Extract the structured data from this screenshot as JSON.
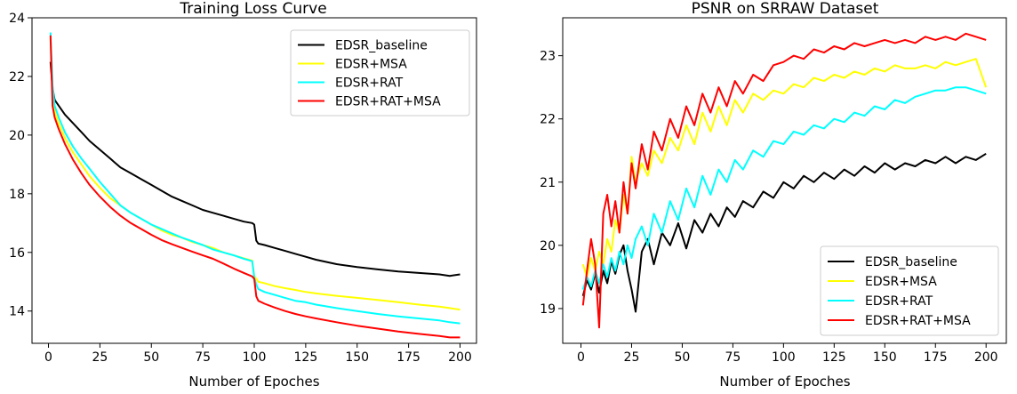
{
  "chart_data": [
    {
      "type": "line",
      "title": "Training Loss Curve",
      "xlabel": "Number of Epoches",
      "ylabel": "",
      "xlim": [
        -8,
        208
      ],
      "ylim": [
        12.9,
        24.0
      ],
      "xticks": [
        0,
        25,
        50,
        75,
        100,
        125,
        150,
        175,
        200
      ],
      "yticks": [
        14,
        16,
        18,
        20,
        22,
        24
      ],
      "legend_position": "top-right",
      "grid": false,
      "series": [
        {
          "name": "EDSR_baseline",
          "color": "#000000",
          "x": [
            1,
            2,
            3,
            5,
            8,
            12,
            16,
            20,
            25,
            30,
            35,
            40,
            45,
            50,
            55,
            60,
            65,
            70,
            75,
            80,
            85,
            90,
            95,
            99,
            100,
            101,
            102,
            105,
            110,
            115,
            120,
            125,
            130,
            140,
            150,
            160,
            170,
            180,
            190,
            195,
            200
          ],
          "y": [
            22.5,
            21.6,
            21.2,
            21.0,
            20.7,
            20.4,
            20.1,
            19.8,
            19.5,
            19.2,
            18.9,
            18.7,
            18.5,
            18.3,
            18.1,
            17.9,
            17.75,
            17.6,
            17.45,
            17.35,
            17.25,
            17.15,
            17.05,
            17.0,
            16.95,
            16.4,
            16.3,
            16.25,
            16.15,
            16.05,
            15.95,
            15.85,
            15.75,
            15.6,
            15.5,
            15.42,
            15.35,
            15.3,
            15.25,
            15.2,
            15.25
          ]
        },
        {
          "name": "EDSR+MSA",
          "color": "#ffff00",
          "x": [
            1,
            2,
            3,
            5,
            8,
            12,
            16,
            20,
            25,
            30,
            35,
            40,
            45,
            50,
            55,
            60,
            65,
            70,
            75,
            80,
            85,
            90,
            95,
            99,
            100,
            101,
            102,
            105,
            110,
            115,
            120,
            125,
            130,
            140,
            150,
            160,
            170,
            180,
            190,
            195,
            200
          ],
          "y": [
            23.3,
            21.5,
            20.8,
            20.4,
            19.9,
            19.4,
            19.0,
            18.6,
            18.2,
            17.85,
            17.6,
            17.35,
            17.15,
            16.95,
            16.75,
            16.6,
            16.5,
            16.35,
            16.25,
            16.15,
            16.0,
            15.9,
            15.8,
            15.72,
            15.2,
            15.1,
            15.0,
            14.95,
            14.85,
            14.78,
            14.72,
            14.65,
            14.6,
            14.52,
            14.45,
            14.38,
            14.3,
            14.22,
            14.15,
            14.1,
            14.05
          ]
        },
        {
          "name": "EDSR+RAT",
          "color": "#00ffff",
          "x": [
            1,
            2,
            3,
            5,
            8,
            12,
            16,
            20,
            25,
            30,
            35,
            40,
            45,
            50,
            55,
            60,
            65,
            70,
            75,
            80,
            85,
            90,
            95,
            99,
            100,
            101,
            102,
            105,
            110,
            115,
            120,
            125,
            130,
            140,
            150,
            160,
            170,
            180,
            190,
            195,
            200
          ],
          "y": [
            23.5,
            21.7,
            21.0,
            20.6,
            20.1,
            19.6,
            19.2,
            18.85,
            18.4,
            18.0,
            17.6,
            17.35,
            17.15,
            16.95,
            16.8,
            16.65,
            16.5,
            16.38,
            16.25,
            16.1,
            16.0,
            15.9,
            15.78,
            15.7,
            15.15,
            14.9,
            14.75,
            14.65,
            14.55,
            14.45,
            14.35,
            14.3,
            14.22,
            14.1,
            14.0,
            13.9,
            13.82,
            13.75,
            13.68,
            13.62,
            13.58
          ]
        },
        {
          "name": "EDSR+RAT+MSA",
          "color": "#ff0000",
          "x": [
            1,
            2,
            3,
            5,
            8,
            12,
            16,
            20,
            25,
            30,
            35,
            40,
            45,
            50,
            55,
            60,
            65,
            70,
            75,
            80,
            85,
            90,
            95,
            99,
            100,
            101,
            102,
            105,
            110,
            115,
            120,
            125,
            130,
            140,
            150,
            160,
            170,
            180,
            190,
            195,
            200
          ],
          "y": [
            23.4,
            21.0,
            20.6,
            20.2,
            19.7,
            19.15,
            18.7,
            18.3,
            17.9,
            17.55,
            17.25,
            17.0,
            16.8,
            16.6,
            16.42,
            16.28,
            16.15,
            16.02,
            15.9,
            15.78,
            15.62,
            15.45,
            15.3,
            15.18,
            15.1,
            14.5,
            14.35,
            14.25,
            14.12,
            14.0,
            13.9,
            13.82,
            13.75,
            13.62,
            13.5,
            13.4,
            13.3,
            13.22,
            13.15,
            13.1,
            13.1
          ]
        }
      ]
    },
    {
      "type": "line",
      "title": "PSNR on SRRAW Dataset",
      "xlabel": "Number of Epoches",
      "ylabel": "",
      "xlim": [
        -9,
        210
      ],
      "ylim": [
        18.45,
        23.6
      ],
      "xticks": [
        0,
        25,
        50,
        75,
        100,
        125,
        150,
        175,
        200
      ],
      "yticks": [
        19,
        20,
        21,
        22,
        23
      ],
      "legend_position": "bottom-right",
      "grid": false,
      "series": [
        {
          "name": "EDSR_baseline",
          "color": "#000000",
          "x": [
            1,
            3,
            5,
            7,
            9,
            11,
            13,
            15,
            17,
            19,
            21,
            23,
            25,
            27,
            30,
            33,
            36,
            40,
            44,
            48,
            52,
            56,
            60,
            64,
            68,
            72,
            76,
            80,
            85,
            90,
            95,
            100,
            105,
            110,
            115,
            120,
            125,
            130,
            135,
            140,
            145,
            150,
            155,
            160,
            165,
            170,
            175,
            180,
            185,
            190,
            195,
            200
          ],
          "y": [
            19.2,
            19.45,
            19.3,
            19.55,
            19.25,
            19.6,
            19.4,
            19.75,
            19.55,
            19.85,
            20.0,
            19.6,
            19.3,
            18.95,
            19.9,
            20.1,
            19.7,
            20.2,
            20.0,
            20.35,
            19.95,
            20.4,
            20.2,
            20.5,
            20.3,
            20.6,
            20.45,
            20.7,
            20.6,
            20.85,
            20.75,
            21.0,
            20.9,
            21.1,
            21.0,
            21.15,
            21.05,
            21.2,
            21.1,
            21.25,
            21.15,
            21.3,
            21.2,
            21.3,
            21.25,
            21.35,
            21.3,
            21.4,
            21.3,
            21.4,
            21.35,
            21.45
          ]
        },
        {
          "name": "EDSR+MSA",
          "color": "#ffff00",
          "x": [
            1,
            3,
            5,
            7,
            9,
            11,
            13,
            15,
            17,
            19,
            21,
            23,
            25,
            27,
            30,
            33,
            36,
            40,
            44,
            48,
            52,
            56,
            60,
            64,
            68,
            72,
            76,
            80,
            85,
            90,
            95,
            100,
            105,
            110,
            115,
            120,
            125,
            130,
            135,
            140,
            145,
            150,
            155,
            160,
            165,
            170,
            175,
            180,
            185,
            190,
            195,
            200
          ],
          "y": [
            19.7,
            19.5,
            19.8,
            19.6,
            19.9,
            19.7,
            20.1,
            19.9,
            20.4,
            20.2,
            20.8,
            20.5,
            21.4,
            21.0,
            21.3,
            21.1,
            21.5,
            21.3,
            21.7,
            21.5,
            21.9,
            21.6,
            22.1,
            21.8,
            22.2,
            21.9,
            22.3,
            22.1,
            22.4,
            22.3,
            22.45,
            22.4,
            22.55,
            22.5,
            22.65,
            22.6,
            22.7,
            22.65,
            22.75,
            22.7,
            22.8,
            22.75,
            22.85,
            22.8,
            22.8,
            22.85,
            22.8,
            22.9,
            22.85,
            22.9,
            22.95,
            22.5
          ]
        },
        {
          "name": "EDSR+RAT",
          "color": "#00ffff",
          "x": [
            1,
            3,
            5,
            7,
            9,
            11,
            13,
            15,
            17,
            19,
            21,
            23,
            25,
            27,
            30,
            33,
            36,
            40,
            44,
            48,
            52,
            56,
            60,
            64,
            68,
            72,
            76,
            80,
            85,
            90,
            95,
            100,
            105,
            110,
            115,
            120,
            125,
            130,
            135,
            140,
            145,
            150,
            155,
            160,
            165,
            170,
            175,
            180,
            185,
            190,
            195,
            200
          ],
          "y": [
            19.3,
            19.5,
            19.35,
            19.6,
            19.4,
            19.7,
            19.5,
            19.8,
            19.6,
            19.9,
            19.7,
            20.0,
            19.8,
            20.1,
            20.3,
            20.0,
            20.5,
            20.2,
            20.7,
            20.4,
            20.9,
            20.6,
            21.1,
            20.8,
            21.2,
            21.0,
            21.35,
            21.2,
            21.5,
            21.4,
            21.65,
            21.6,
            21.8,
            21.75,
            21.9,
            21.85,
            22.0,
            21.95,
            22.1,
            22.05,
            22.2,
            22.15,
            22.3,
            22.25,
            22.35,
            22.4,
            22.45,
            22.45,
            22.5,
            22.5,
            22.45,
            22.4
          ]
        },
        {
          "name": "EDSR+RAT+MSA",
          "color": "#ff0000",
          "x": [
            1,
            3,
            5,
            7,
            9,
            11,
            13,
            15,
            17,
            19,
            21,
            23,
            25,
            27,
            30,
            33,
            36,
            40,
            44,
            48,
            52,
            56,
            60,
            64,
            68,
            72,
            76,
            80,
            85,
            90,
            95,
            100,
            105,
            110,
            115,
            120,
            125,
            130,
            135,
            140,
            145,
            150,
            155,
            160,
            165,
            170,
            175,
            180,
            185,
            190,
            195,
            200
          ],
          "y": [
            19.05,
            19.6,
            20.1,
            19.7,
            18.7,
            20.5,
            20.8,
            20.3,
            20.7,
            20.2,
            21.0,
            20.5,
            21.3,
            20.9,
            21.6,
            21.2,
            21.8,
            21.5,
            22.0,
            21.7,
            22.2,
            21.9,
            22.4,
            22.1,
            22.5,
            22.2,
            22.6,
            22.4,
            22.7,
            22.6,
            22.85,
            22.9,
            23.0,
            22.95,
            23.1,
            23.05,
            23.15,
            23.1,
            23.2,
            23.15,
            23.2,
            23.25,
            23.2,
            23.25,
            23.2,
            23.3,
            23.25,
            23.3,
            23.25,
            23.35,
            23.3,
            23.25
          ]
        }
      ]
    }
  ]
}
